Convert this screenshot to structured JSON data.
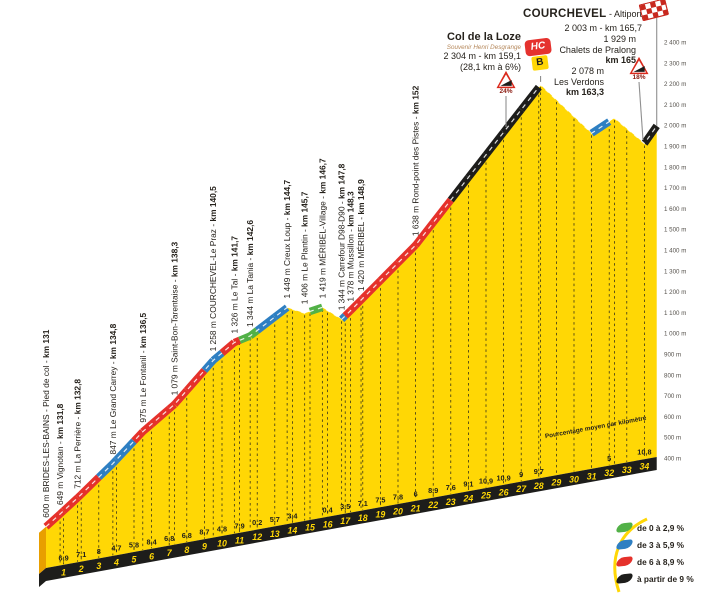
{
  "chart_data": {
    "type": "area",
    "title_context": "Climb profile",
    "colors": {
      "yellow": "#ffd705",
      "green": "#52b147",
      "blue": "#2e7fc2",
      "red": "#e5312b",
      "black": "#1d1d1b",
      "flag_red": "#c8281e",
      "text_dark": "#26221c",
      "souvenir_tan": "#b5875a"
    },
    "annotations": {
      "courchevel": {
        "name": "COURCHEVEL",
        "suffix": " - Altiport",
        "line1": "2 003 m - km 165,7"
      },
      "col_de_la_loze": {
        "name": "Col de la Loze",
        "subtitle": "Souvenir Henri Desgrange",
        "line1": "2 304 m - km 159,1",
        "line2": "(28,1 km à 6%)",
        "badge_top": "HC",
        "badge_bottom": "B"
      },
      "chalets_de_pralong": {
        "line1": "1 929 m",
        "name": "Chalets de Pralong",
        "line2": "km 165"
      },
      "les_verdons": {
        "line1": "2 078 m",
        "name": "Les Verdons",
        "line2": "km 163,3"
      },
      "warnings": [
        {
          "label": "24%"
        },
        {
          "label": "18%"
        }
      ]
    },
    "legend": [
      {
        "color": "green",
        "label": "de 0 à 2,9 %"
      },
      {
        "color": "blue",
        "label": "de 3 à 5,9 %"
      },
      {
        "color": "red",
        "label": "de 6 à 8,9 %"
      },
      {
        "color": "black",
        "label": "à partir de 9 %"
      }
    ],
    "profile": {
      "axis_note": "Pourcentage moyen par kilomètre",
      "km_ticks": [
        1,
        2,
        3,
        4,
        5,
        6,
        7,
        8,
        9,
        10,
        11,
        12,
        13,
        14,
        15,
        16,
        17,
        18,
        19,
        20,
        21,
        22,
        23,
        24,
        25,
        26,
        27,
        28,
        29,
        30,
        31,
        32,
        33,
        34
      ],
      "gradients_per_km": [
        "6,9",
        "7,1",
        "8",
        "4,7",
        "5,8",
        "8,4",
        "6,8",
        "6,8",
        "8,7",
        "4,8",
        "7,9",
        "0,2",
        "5,7",
        "3,4",
        null,
        "0,4",
        "3,5",
        "7,1",
        "7,5",
        "7,8",
        "6",
        "8,9",
        "7,6",
        "9,1",
        "10,9",
        "10,9",
        "9",
        "9,7",
        null,
        null,
        null,
        "5",
        null,
        "10,8"
      ],
      "categories_per_km": [
        "red",
        "red",
        "red",
        "blue",
        "blue",
        "red",
        "red",
        "red",
        "red",
        "blue",
        "red",
        "green",
        "blue",
        "blue",
        null,
        "green",
        "blue",
        "red",
        "red",
        "red",
        "red",
        "red",
        "red",
        "black",
        "black",
        "black",
        "black",
        "black",
        null,
        null,
        null,
        "blue",
        null,
        "black",
        "black"
      ],
      "elevation_scale_m": [
        "2 400 m",
        "2 300 m",
        "2 200 m",
        "2 100 m",
        "2 000 m",
        "1 900 m",
        "1 800 m",
        "1 700 m",
        "1 600 m",
        "1 500 m",
        "1 400 m",
        "1 300 m",
        "1 200 m",
        "1 100 m",
        "1 000 m",
        "900 m",
        "800 m",
        "700 m",
        "600 m",
        "500 m",
        "400 m"
      ],
      "vertices": [
        {
          "km": 0,
          "elev": 600
        },
        {
          "km": 0.8,
          "elev": 649
        },
        {
          "km": 1.8,
          "elev": 712
        },
        {
          "km": 3.8,
          "elev": 847
        },
        {
          "km": 5.5,
          "elev": 975
        },
        {
          "km": 7.3,
          "elev": 1079
        },
        {
          "km": 9.5,
          "elev": 1258
        },
        {
          "km": 10.7,
          "elev": 1326
        },
        {
          "km": 11.6,
          "elev": 1344
        },
        {
          "km": 13.7,
          "elev": 1449
        },
        {
          "km": 14.7,
          "elev": 1406
        },
        {
          "km": 15.7,
          "elev": 1419
        },
        {
          "km": 16.8,
          "elev": 1344
        },
        {
          "km": 17.3,
          "elev": 1378
        },
        {
          "km": 17.9,
          "elev": 1420
        },
        {
          "km": 21,
          "elev": 1638
        },
        {
          "km": 28.1,
          "elev": 2304
        },
        {
          "km": 31,
          "elev": 2025
        },
        {
          "km": 32.3,
          "elev": 2078
        },
        {
          "km": 34,
          "elev": 1929
        },
        {
          "km": 34.7,
          "elev": 2003
        }
      ],
      "waypoints": [
        {
          "km": 0,
          "text": "600 m BRIDES-LES-BAINS - Pied de col - ",
          "km_label": "km 131"
        },
        {
          "km": 0.8,
          "text": "649 m Vignotan - ",
          "km_label": "km 131,8"
        },
        {
          "km": 1.8,
          "text": "712 m La Perrière - ",
          "km_label": "km 132,8"
        },
        {
          "km": 3.8,
          "text": "847 m Le Grand Carrey - ",
          "km_label": "km 134,8"
        },
        {
          "km": 5.5,
          "text": "975 m Le Fontanil - ",
          "km_label": "km 136,5"
        },
        {
          "km": 7.3,
          "text": "1 079 m Saint-Bon-Tarentaise - ",
          "km_label": "km 138,3"
        },
        {
          "km": 9.5,
          "text": "1 258 m COURCHEVEL-Le Praz - ",
          "km_label": "km 140,5"
        },
        {
          "km": 10.7,
          "text": "1 326 m Le Tal - ",
          "km_label": "km 141,7"
        },
        {
          "km": 11.6,
          "text": "1 344 m La Tania - ",
          "km_label": "km 142,6"
        },
        {
          "km": 13.7,
          "text": "1 449 m Creux Loup - ",
          "km_label": "km 144,7"
        },
        {
          "km": 14.7,
          "text": "1 406 m Le Plantin - ",
          "km_label": "km 145,7"
        },
        {
          "km": 15.7,
          "text": "1 419 m MÉRIBEL-Village - ",
          "km_label": "km 146,7"
        },
        {
          "km": 16.8,
          "text": "1 344 m Carrefour D98-D90 - ",
          "km_label": "km 147,8"
        },
        {
          "km": 17.3,
          "text": "1 378 m Mussillon - ",
          "km_label": "km 148,3"
        },
        {
          "km": 17.9,
          "text": "1 420 m MÉRIBEL - ",
          "km_label": "km 148,9"
        },
        {
          "km": 21,
          "text": "1 638 m Rond-point des Pistes - ",
          "km_label": "km 152"
        }
      ]
    }
  }
}
